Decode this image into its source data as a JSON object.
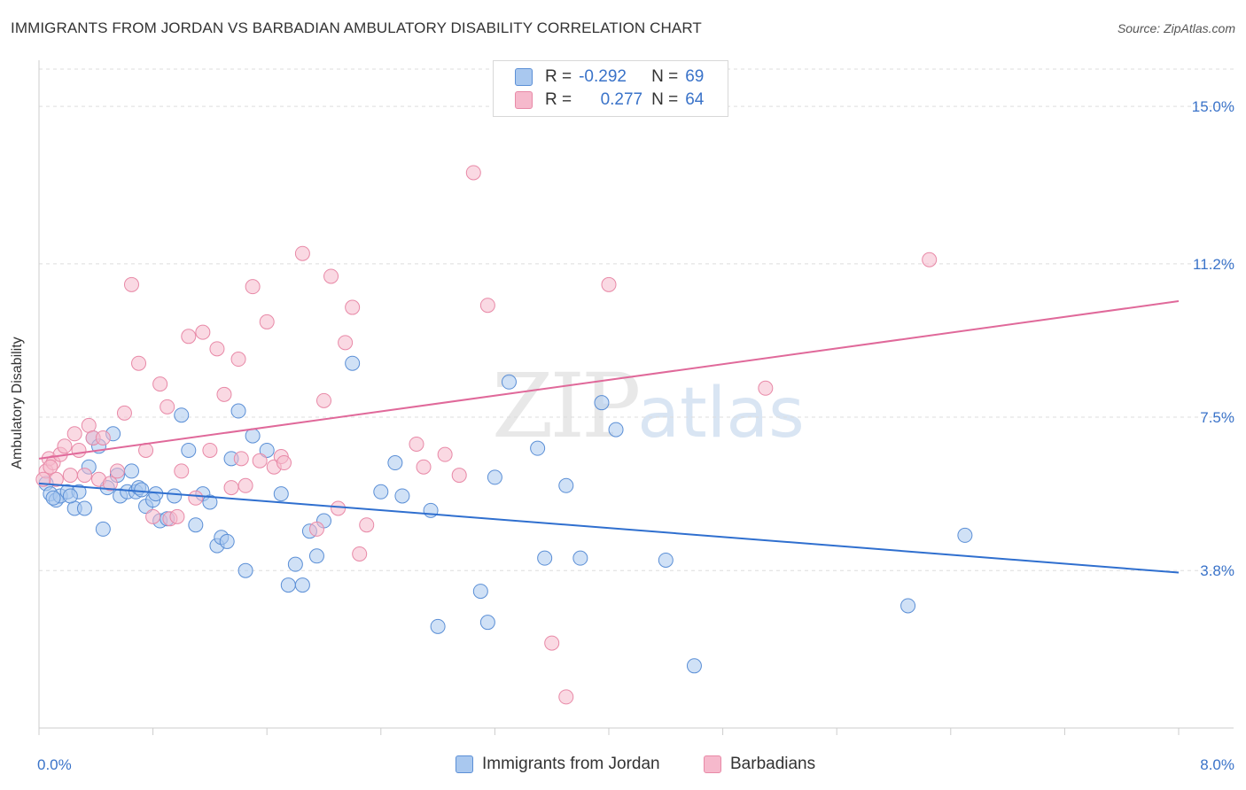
{
  "header": {
    "title": "IMMIGRANTS FROM JORDAN VS BARBADIAN AMBULATORY DISABILITY CORRELATION CHART",
    "source": "Source: ZipAtlas.com"
  },
  "watermark": {
    "zip": "ZIP",
    "atlas": "atlas"
  },
  "legend": {
    "rows": [
      {
        "r_label": "R =",
        "r_value": "-0.292",
        "n_label": "N =",
        "n_value": "69"
      },
      {
        "r_label": "R =",
        "r_value": "0.277",
        "n_label": "N =",
        "n_value": "64"
      }
    ]
  },
  "bottom_legend": {
    "items": [
      {
        "label": "Immigrants from Jordan"
      },
      {
        "label": "Barbadians"
      }
    ]
  },
  "colors": {
    "blue_fill": "#a9c8ef",
    "blue_stroke": "#5b8fd6",
    "blue_line": "#2f6fcf",
    "pink_fill": "#f6b9cc",
    "pink_stroke": "#e889a7",
    "pink_line": "#e0699a",
    "tick_label": "#3a73c9"
  },
  "chart_data": {
    "type": "scatter",
    "title": "IMMIGRANTS FROM JORDAN VS BARBADIAN AMBULATORY DISABILITY CORRELATION CHART",
    "xlabel": "",
    "ylabel": "Ambulatory Disability",
    "xlim": [
      0,
      8.0
    ],
    "ylim": [
      0,
      15.9
    ],
    "x_tick_labels": [
      "0.0%",
      "8.0%"
    ],
    "y_ticks": [
      3.8,
      7.5,
      11.2,
      15.0
    ],
    "y_tick_labels": [
      "3.8%",
      "7.5%",
      "11.2%",
      "15.0%"
    ],
    "grid": "horizontal dashed",
    "legend_position": "top-center",
    "series": [
      {
        "name": "Immigrants from Jordan",
        "trend": {
          "x": [
            0.0,
            8.0
          ],
          "y": [
            5.9,
            3.75
          ]
        },
        "points": [
          [
            0.05,
            5.9
          ],
          [
            0.08,
            5.65
          ],
          [
            0.12,
            5.5
          ],
          [
            0.15,
            5.6
          ],
          [
            0.2,
            5.7
          ],
          [
            0.25,
            5.3
          ],
          [
            0.28,
            5.7
          ],
          [
            0.32,
            5.3
          ],
          [
            0.35,
            6.3
          ],
          [
            0.38,
            7.0
          ],
          [
            0.42,
            6.8
          ],
          [
            0.45,
            4.8
          ],
          [
            0.48,
            5.8
          ],
          [
            0.52,
            7.1
          ],
          [
            0.55,
            6.1
          ],
          [
            0.57,
            5.6
          ],
          [
            0.62,
            5.7
          ],
          [
            0.65,
            6.2
          ],
          [
            0.68,
            5.7
          ],
          [
            0.7,
            5.8
          ],
          [
            0.72,
            5.75
          ],
          [
            0.75,
            5.35
          ],
          [
            0.8,
            5.5
          ],
          [
            0.82,
            5.65
          ],
          [
            0.85,
            5.0
          ],
          [
            0.9,
            5.05
          ],
          [
            0.95,
            5.6
          ],
          [
            1.0,
            7.55
          ],
          [
            1.05,
            6.7
          ],
          [
            1.1,
            4.9
          ],
          [
            1.15,
            5.65
          ],
          [
            1.2,
            5.45
          ],
          [
            1.25,
            4.4
          ],
          [
            1.28,
            4.6
          ],
          [
            1.32,
            4.5
          ],
          [
            1.35,
            6.5
          ],
          [
            1.4,
            7.65
          ],
          [
            1.45,
            3.8
          ],
          [
            1.5,
            7.05
          ],
          [
            1.6,
            6.7
          ],
          [
            1.7,
            5.65
          ],
          [
            1.75,
            3.45
          ],
          [
            1.8,
            3.95
          ],
          [
            1.85,
            3.45
          ],
          [
            1.9,
            4.75
          ],
          [
            1.95,
            4.15
          ],
          [
            2.0,
            5.0
          ],
          [
            2.2,
            8.8
          ],
          [
            2.4,
            5.7
          ],
          [
            2.5,
            6.4
          ],
          [
            2.55,
            5.6
          ],
          [
            2.75,
            5.25
          ],
          [
            2.8,
            2.45
          ],
          [
            3.1,
            3.3
          ],
          [
            3.15,
            2.55
          ],
          [
            3.2,
            6.05
          ],
          [
            3.3,
            8.35
          ],
          [
            3.5,
            6.75
          ],
          [
            3.55,
            4.1
          ],
          [
            3.7,
            5.85
          ],
          [
            3.8,
            4.1
          ],
          [
            3.95,
            7.85
          ],
          [
            4.05,
            7.2
          ],
          [
            4.4,
            4.05
          ],
          [
            4.6,
            1.5
          ],
          [
            6.1,
            2.95
          ],
          [
            6.5,
            4.65
          ],
          [
            0.1,
            5.55
          ],
          [
            0.22,
            5.6
          ]
        ]
      },
      {
        "name": "Barbadians",
        "trend": {
          "x": [
            0.0,
            8.0
          ],
          "y": [
            6.5,
            10.3
          ]
        },
        "points": [
          [
            0.05,
            6.2
          ],
          [
            0.07,
            6.5
          ],
          [
            0.1,
            6.4
          ],
          [
            0.12,
            6.0
          ],
          [
            0.15,
            6.6
          ],
          [
            0.18,
            6.8
          ],
          [
            0.22,
            6.1
          ],
          [
            0.25,
            7.1
          ],
          [
            0.28,
            6.7
          ],
          [
            0.32,
            6.1
          ],
          [
            0.35,
            7.3
          ],
          [
            0.38,
            7.0
          ],
          [
            0.42,
            6.0
          ],
          [
            0.45,
            7.0
          ],
          [
            0.5,
            5.9
          ],
          [
            0.55,
            6.2
          ],
          [
            0.6,
            7.6
          ],
          [
            0.65,
            10.7
          ],
          [
            0.7,
            8.8
          ],
          [
            0.75,
            6.7
          ],
          [
            0.8,
            5.1
          ],
          [
            0.85,
            8.3
          ],
          [
            0.9,
            7.75
          ],
          [
            0.92,
            5.05
          ],
          [
            0.97,
            5.1
          ],
          [
            1.0,
            6.2
          ],
          [
            1.05,
            9.45
          ],
          [
            1.1,
            5.55
          ],
          [
            1.15,
            9.55
          ],
          [
            1.2,
            6.7
          ],
          [
            1.25,
            9.15
          ],
          [
            1.3,
            8.05
          ],
          [
            1.35,
            5.8
          ],
          [
            1.4,
            8.9
          ],
          [
            1.42,
            6.5
          ],
          [
            1.45,
            5.85
          ],
          [
            1.5,
            10.65
          ],
          [
            1.55,
            6.45
          ],
          [
            1.6,
            9.8
          ],
          [
            1.65,
            6.3
          ],
          [
            1.7,
            6.55
          ],
          [
            1.72,
            6.4
          ],
          [
            1.85,
            11.45
          ],
          [
            1.95,
            4.8
          ],
          [
            2.0,
            7.9
          ],
          [
            2.05,
            10.9
          ],
          [
            2.1,
            5.3
          ],
          [
            2.15,
            9.3
          ],
          [
            2.2,
            10.15
          ],
          [
            2.25,
            4.2
          ],
          [
            2.3,
            4.9
          ],
          [
            2.65,
            6.85
          ],
          [
            2.7,
            6.3
          ],
          [
            2.85,
            6.6
          ],
          [
            2.95,
            6.1
          ],
          [
            3.05,
            13.4
          ],
          [
            3.15,
            10.2
          ],
          [
            3.6,
            2.05
          ],
          [
            3.7,
            0.75
          ],
          [
            4.0,
            10.7
          ],
          [
            5.1,
            8.2
          ],
          [
            6.25,
            11.3
          ],
          [
            0.03,
            6.0
          ],
          [
            0.08,
            6.3
          ]
        ]
      }
    ]
  }
}
